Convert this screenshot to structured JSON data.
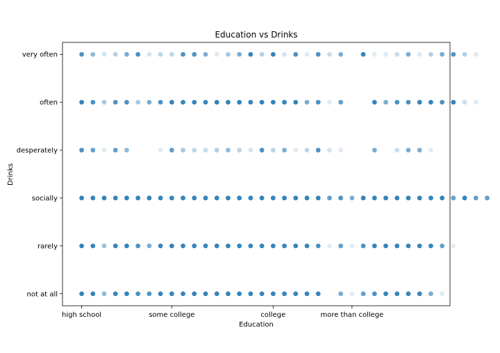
{
  "chart_data": {
    "type": "scatter",
    "title": "Education vs Drinks",
    "xlabel": "Education",
    "ylabel": "Drinks",
    "x_categories": [
      "high school",
      "some college",
      "college",
      "more than college"
    ],
    "y_categories": [
      "not at all",
      "rarely",
      "socially",
      "desperately",
      "often",
      "very often"
    ],
    "x_tick_positions": [
      0,
      8,
      17,
      24
    ],
    "xlim": [
      -1.7,
      32.7
    ],
    "ylim": [
      -0.25,
      5.25
    ],
    "grid": false,
    "legend": "none",
    "marker_color": "#1f77b4",
    "rows": [
      {
        "y": "very often",
        "points": [
          [
            0,
            0.8
          ],
          [
            1,
            0.5
          ],
          [
            2,
            0.2
          ],
          [
            3,
            0.35
          ],
          [
            4,
            0.6
          ],
          [
            5,
            0.8
          ],
          [
            6,
            0.2
          ],
          [
            7,
            0.3
          ],
          [
            8,
            0.3
          ],
          [
            9,
            0.8
          ],
          [
            10,
            0.8
          ],
          [
            11,
            0.6
          ],
          [
            12,
            0.15
          ],
          [
            13,
            0.4
          ],
          [
            14,
            0.6
          ],
          [
            15,
            0.9
          ],
          [
            16,
            0.35
          ],
          [
            17,
            0.9
          ],
          [
            18,
            0.2
          ],
          [
            19,
            0.8
          ],
          [
            20,
            0.15
          ],
          [
            21,
            0.8
          ],
          [
            22,
            0.25
          ],
          [
            23,
            0.6
          ],
          [
            25,
            0.9
          ],
          [
            26,
            0.15
          ],
          [
            27,
            0.15
          ],
          [
            28,
            0.25
          ],
          [
            29,
            0.6
          ],
          [
            30,
            0.15
          ],
          [
            31,
            0.35
          ],
          [
            32,
            0.6
          ],
          [
            33,
            0.8
          ],
          [
            34,
            0.35
          ],
          [
            35,
            0.15
          ]
        ]
      },
      {
        "y": "often",
        "points": [
          [
            0,
            0.9
          ],
          [
            1,
            0.8
          ],
          [
            2,
            0.4
          ],
          [
            3,
            0.8
          ],
          [
            4,
            0.8
          ],
          [
            5,
            0.4
          ],
          [
            6,
            0.6
          ],
          [
            7,
            0.8
          ],
          [
            8,
            0.9
          ],
          [
            9,
            0.9
          ],
          [
            10,
            0.9
          ],
          [
            11,
            0.9
          ],
          [
            12,
            0.9
          ],
          [
            13,
            0.9
          ],
          [
            14,
            0.9
          ],
          [
            15,
            0.9
          ],
          [
            16,
            0.9
          ],
          [
            17,
            0.9
          ],
          [
            18,
            0.9
          ],
          [
            19,
            0.9
          ],
          [
            20,
            0.6
          ],
          [
            21,
            0.8
          ],
          [
            22,
            0.15
          ],
          [
            23,
            0.7
          ],
          [
            26,
            0.9
          ],
          [
            27,
            0.6
          ],
          [
            28,
            0.8
          ],
          [
            29,
            0.8
          ],
          [
            30,
            0.9
          ],
          [
            31,
            0.9
          ],
          [
            32,
            0.8
          ],
          [
            33,
            0.9
          ],
          [
            34,
            0.25
          ],
          [
            35,
            0.15
          ]
        ]
      },
      {
        "y": "desperately",
        "points": [
          [
            0,
            0.8
          ],
          [
            1,
            0.7
          ],
          [
            2,
            0.15
          ],
          [
            3,
            0.7
          ],
          [
            4,
            0.5
          ],
          [
            7,
            0.15
          ],
          [
            8,
            0.7
          ],
          [
            9,
            0.4
          ],
          [
            10,
            0.3
          ],
          [
            11,
            0.25
          ],
          [
            12,
            0.35
          ],
          [
            13,
            0.5
          ],
          [
            14,
            0.3
          ],
          [
            15,
            0.2
          ],
          [
            16,
            0.8
          ],
          [
            17,
            0.3
          ],
          [
            18,
            0.6
          ],
          [
            19,
            0.15
          ],
          [
            20,
            0.3
          ],
          [
            21,
            0.8
          ],
          [
            22,
            0.2
          ],
          [
            23,
            0.15
          ],
          [
            26,
            0.6
          ],
          [
            28,
            0.25
          ],
          [
            29,
            0.6
          ],
          [
            30,
            0.6
          ],
          [
            31,
            0.15
          ]
        ]
      },
      {
        "y": "socially",
        "points": [
          [
            0,
            0.9
          ],
          [
            1,
            0.9
          ],
          [
            2,
            0.9
          ],
          [
            3,
            0.9
          ],
          [
            4,
            0.9
          ],
          [
            5,
            0.9
          ],
          [
            6,
            0.9
          ],
          [
            7,
            0.9
          ],
          [
            8,
            0.9
          ],
          [
            9,
            0.9
          ],
          [
            10,
            0.9
          ],
          [
            11,
            0.9
          ],
          [
            12,
            0.9
          ],
          [
            13,
            0.9
          ],
          [
            14,
            0.9
          ],
          [
            15,
            0.9
          ],
          [
            16,
            0.9
          ],
          [
            17,
            0.9
          ],
          [
            18,
            0.9
          ],
          [
            19,
            0.9
          ],
          [
            20,
            0.9
          ],
          [
            21,
            0.9
          ],
          [
            22,
            0.7
          ],
          [
            23,
            0.8
          ],
          [
            24,
            0.6
          ],
          [
            25,
            0.9
          ],
          [
            26,
            0.9
          ],
          [
            27,
            0.9
          ],
          [
            28,
            0.9
          ],
          [
            29,
            0.9
          ],
          [
            30,
            0.9
          ],
          [
            31,
            0.9
          ],
          [
            32,
            0.9
          ],
          [
            33,
            0.7
          ],
          [
            34,
            0.9
          ],
          [
            35,
            0.7
          ],
          [
            36,
            0.7
          ]
        ]
      },
      {
        "y": "rarely",
        "points": [
          [
            0,
            0.9
          ],
          [
            1,
            0.9
          ],
          [
            2,
            0.45
          ],
          [
            3,
            0.9
          ],
          [
            4,
            0.9
          ],
          [
            5,
            0.8
          ],
          [
            6,
            0.6
          ],
          [
            7,
            0.9
          ],
          [
            8,
            0.9
          ],
          [
            9,
            0.9
          ],
          [
            10,
            0.9
          ],
          [
            11,
            0.9
          ],
          [
            12,
            0.9
          ],
          [
            13,
            0.9
          ],
          [
            14,
            0.9
          ],
          [
            15,
            0.9
          ],
          [
            16,
            0.9
          ],
          [
            17,
            0.9
          ],
          [
            18,
            0.9
          ],
          [
            19,
            0.9
          ],
          [
            20,
            0.9
          ],
          [
            21,
            0.8
          ],
          [
            22,
            0.15
          ],
          [
            23,
            0.7
          ],
          [
            24,
            0.15
          ],
          [
            25,
            0.8
          ],
          [
            26,
            0.9
          ],
          [
            27,
            0.9
          ],
          [
            28,
            0.9
          ],
          [
            29,
            0.9
          ],
          [
            30,
            0.9
          ],
          [
            31,
            0.9
          ],
          [
            32,
            0.7
          ],
          [
            33,
            0.15
          ]
        ]
      },
      {
        "y": "not at all",
        "points": [
          [
            0,
            0.9
          ],
          [
            1,
            0.9
          ],
          [
            2,
            0.5
          ],
          [
            3,
            0.9
          ],
          [
            4,
            0.9
          ],
          [
            5,
            0.8
          ],
          [
            6,
            0.8
          ],
          [
            7,
            0.9
          ],
          [
            8,
            0.9
          ],
          [
            9,
            0.9
          ],
          [
            10,
            0.9
          ],
          [
            11,
            0.9
          ],
          [
            12,
            0.9
          ],
          [
            13,
            0.9
          ],
          [
            14,
            0.9
          ],
          [
            15,
            0.9
          ],
          [
            16,
            0.9
          ],
          [
            17,
            0.9
          ],
          [
            18,
            0.9
          ],
          [
            19,
            0.9
          ],
          [
            20,
            0.9
          ],
          [
            21,
            0.9
          ],
          [
            23,
            0.6
          ],
          [
            24,
            0.15
          ],
          [
            25,
            0.7
          ],
          [
            26,
            0.8
          ],
          [
            27,
            0.9
          ],
          [
            28,
            0.9
          ],
          [
            29,
            0.9
          ],
          [
            30,
            0.9
          ],
          [
            31,
            0.6
          ],
          [
            32,
            0.15
          ]
        ]
      }
    ]
  }
}
